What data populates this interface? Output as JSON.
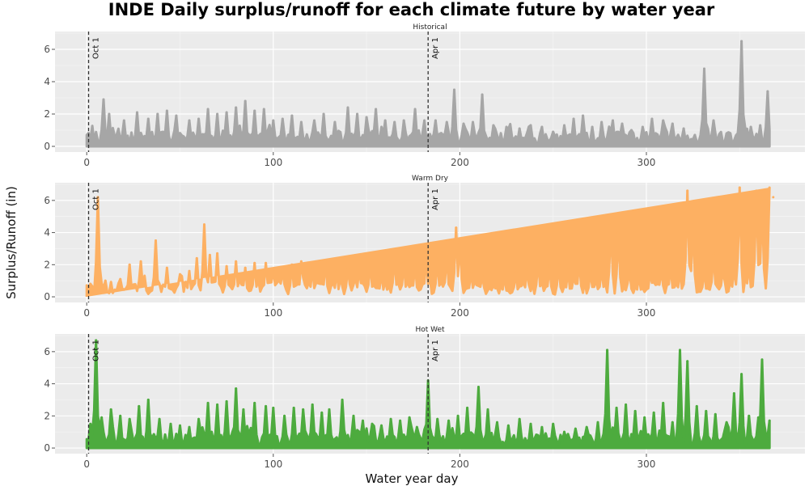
{
  "chart_data": {
    "type": "area",
    "title": "INDE Daily surplus/runoff for each climate future by water year",
    "xlabel": "Water year day",
    "ylabel": "Surplus/Runoff (in)",
    "xlim": [
      -17,
      385
    ],
    "ylim": [
      -0.35,
      7.1
    ],
    "x_ticks": [
      0,
      100,
      200,
      300
    ],
    "y_ticks": [
      0,
      2,
      4,
      6
    ],
    "grid": true,
    "legend": "none",
    "vlines": [
      {
        "x": 1,
        "label": "Oct 1"
      },
      {
        "x": 183,
        "label": "Apr 1"
      }
    ],
    "panels": [
      {
        "name": "Historical",
        "color": "#a6a6a6",
        "peaks": [
          [
            9,
            2.9
          ],
          [
            12,
            2.0
          ],
          [
            20,
            1.6
          ],
          [
            27,
            2.1
          ],
          [
            33,
            1.7
          ],
          [
            38,
            2.0
          ],
          [
            43,
            2.2
          ],
          [
            48,
            1.9
          ],
          [
            55,
            1.6
          ],
          [
            60,
            1.7
          ],
          [
            65,
            2.3
          ],
          [
            70,
            2.0
          ],
          [
            75,
            2.1
          ],
          [
            80,
            2.4
          ],
          [
            85,
            2.8
          ],
          [
            90,
            2.2
          ],
          [
            95,
            2.3
          ],
          [
            100,
            1.6
          ],
          [
            105,
            1.7
          ],
          [
            110,
            1.9
          ],
          [
            115,
            1.5
          ],
          [
            122,
            1.6
          ],
          [
            127,
            2.0
          ],
          [
            133,
            1.5
          ],
          [
            140,
            2.4
          ],
          [
            145,
            2.0
          ],
          [
            150,
            1.8
          ],
          [
            155,
            2.3
          ],
          [
            160,
            1.6
          ],
          [
            165,
            1.5
          ],
          [
            170,
            1.6
          ],
          [
            176,
            2.3
          ],
          [
            181,
            1.6
          ],
          [
            187,
            1.6
          ],
          [
            193,
            1.5
          ],
          [
            197,
            3.5
          ],
          [
            202,
            1.4
          ],
          [
            207,
            1.5
          ],
          [
            212,
            3.2
          ],
          [
            218,
            1.3
          ],
          [
            225,
            1.2
          ],
          [
            232,
            1.1
          ],
          [
            238,
            1.3
          ],
          [
            244,
            1.2
          ],
          [
            250,
            0.9
          ],
          [
            256,
            1.3
          ],
          [
            261,
            1.7
          ],
          [
            266,
            1.9
          ],
          [
            271,
            1.2
          ],
          [
            276,
            1.5
          ],
          [
            282,
            1.6
          ],
          [
            287,
            1.4
          ],
          [
            292,
            1.0
          ],
          [
            298,
            1.2
          ],
          [
            303,
            1.7
          ],
          [
            309,
            1.6
          ],
          [
            314,
            1.4
          ],
          [
            320,
            1.1
          ],
          [
            326,
            0.7
          ],
          [
            331,
            4.8
          ],
          [
            336,
            1.6
          ],
          [
            343,
            0.8
          ],
          [
            351,
            6.5
          ],
          [
            356,
            1.2
          ],
          [
            361,
            1.3
          ],
          [
            365,
            3.4
          ]
        ]
      },
      {
        "name": "Warm Dry",
        "color": "#fdb062",
        "peaks": [
          [
            2,
            0.8
          ],
          [
            6,
            6.2
          ],
          [
            10,
            1.0
          ],
          [
            18,
            1.1
          ],
          [
            23,
            2.0
          ],
          [
            29,
            2.2
          ],
          [
            37,
            3.5
          ],
          [
            43,
            1.8
          ],
          [
            50,
            1.4
          ],
          [
            55,
            1.6
          ],
          [
            59,
            2.4
          ],
          [
            63,
            4.5
          ],
          [
            66,
            2.6
          ],
          [
            70,
            2.7
          ],
          [
            75,
            1.9
          ],
          [
            80,
            2.2
          ],
          [
            85,
            1.8
          ],
          [
            90,
            2.1
          ],
          [
            96,
            2.1
          ],
          [
            100,
            1.7
          ],
          [
            105,
            1.6
          ],
          [
            110,
            2.0
          ],
          [
            115,
            2.2
          ],
          [
            121,
            1.8
          ],
          [
            128,
            2.2
          ],
          [
            134,
            1.6
          ],
          [
            140,
            1.8
          ],
          [
            146,
            1.7
          ],
          [
            152,
            2.1
          ],
          [
            158,
            1.5
          ],
          [
            165,
            2.5
          ],
          [
            170,
            2.1
          ],
          [
            176,
            2.0
          ],
          [
            182,
            2.4
          ],
          [
            188,
            2.3
          ],
          [
            193,
            2.6
          ],
          [
            198,
            4.3
          ],
          [
            200,
            3.6
          ],
          [
            206,
            1.6
          ],
          [
            212,
            1.3
          ],
          [
            218,
            0.7
          ],
          [
            224,
            1.3
          ],
          [
            230,
            1.5
          ],
          [
            236,
            1.7
          ],
          [
            242,
            2.2
          ],
          [
            248,
            1.9
          ],
          [
            253,
            2.0
          ],
          [
            258,
            1.7
          ],
          [
            264,
            2.3
          ],
          [
            270,
            1.6
          ],
          [
            276,
            1.8
          ],
          [
            281,
            4.5
          ],
          [
            285,
            4.0
          ],
          [
            291,
            1.6
          ],
          [
            296,
            1.3
          ],
          [
            302,
            1.5
          ],
          [
            308,
            1.7
          ],
          [
            313,
            1.9
          ],
          [
            318,
            1.7
          ],
          [
            322,
            6.6
          ],
          [
            325,
            4.6
          ],
          [
            331,
            1.7
          ],
          [
            336,
            2.7
          ],
          [
            341,
            1.6
          ],
          [
            347,
            1.8
          ],
          [
            350,
            6.8
          ],
          [
            355,
            2.0
          ],
          [
            359,
            6.6
          ],
          [
            362,
            5.9
          ],
          [
            366,
            6.8
          ],
          [
            368,
            6.2
          ]
        ]
      },
      {
        "name": "Hot Wet",
        "color": "#4dab3e",
        "peaks": [
          [
            2,
            1.5
          ],
          [
            5,
            6.7
          ],
          [
            8,
            1.9
          ],
          [
            13,
            2.4
          ],
          [
            18,
            2.0
          ],
          [
            23,
            1.8
          ],
          [
            28,
            2.6
          ],
          [
            33,
            3.0
          ],
          [
            39,
            1.8
          ],
          [
            45,
            1.5
          ],
          [
            50,
            1.4
          ],
          [
            55,
            1.3
          ],
          [
            60,
            1.8
          ],
          [
            65,
            2.8
          ],
          [
            70,
            2.7
          ],
          [
            75,
            2.9
          ],
          [
            80,
            3.7
          ],
          [
            84,
            2.4
          ],
          [
            90,
            2.8
          ],
          [
            96,
            2.6
          ],
          [
            100,
            2.5
          ],
          [
            106,
            2.0
          ],
          [
            111,
            2.5
          ],
          [
            116,
            2.4
          ],
          [
            121,
            2.7
          ],
          [
            126,
            2.2
          ],
          [
            130,
            2.4
          ],
          [
            137,
            3.0
          ],
          [
            143,
            2.0
          ],
          [
            148,
            1.7
          ],
          [
            153,
            1.5
          ],
          [
            158,
            1.4
          ],
          [
            163,
            1.8
          ],
          [
            168,
            1.7
          ],
          [
            173,
            1.9
          ],
          [
            177,
            1.3
          ],
          [
            183,
            4.2
          ],
          [
            188,
            1.8
          ],
          [
            194,
            1.7
          ],
          [
            199,
            2.0
          ],
          [
            204,
            2.5
          ],
          [
            210,
            3.8
          ],
          [
            215,
            2.4
          ],
          [
            220,
            1.6
          ],
          [
            226,
            1.4
          ],
          [
            232,
            1.8
          ],
          [
            238,
            1.5
          ],
          [
            244,
            1.3
          ],
          [
            250,
            1.5
          ],
          [
            256,
            1.0
          ],
          [
            262,
            1.2
          ],
          [
            268,
            1.3
          ],
          [
            274,
            1.6
          ],
          [
            279,
            6.1
          ],
          [
            284,
            2.5
          ],
          [
            289,
            2.7
          ],
          [
            294,
            2.3
          ],
          [
            299,
            1.9
          ],
          [
            304,
            2.2
          ],
          [
            309,
            2.8
          ],
          [
            314,
            1.6
          ],
          [
            318,
            6.1
          ],
          [
            322,
            5.4
          ],
          [
            327,
            2.6
          ],
          [
            332,
            2.3
          ],
          [
            337,
            2.1
          ],
          [
            343,
            1.6
          ],
          [
            347,
            3.4
          ],
          [
            351,
            4.6
          ],
          [
            355,
            2.0
          ],
          [
            360,
            1.9
          ],
          [
            362,
            5.5
          ],
          [
            366,
            1.7
          ]
        ]
      }
    ]
  }
}
